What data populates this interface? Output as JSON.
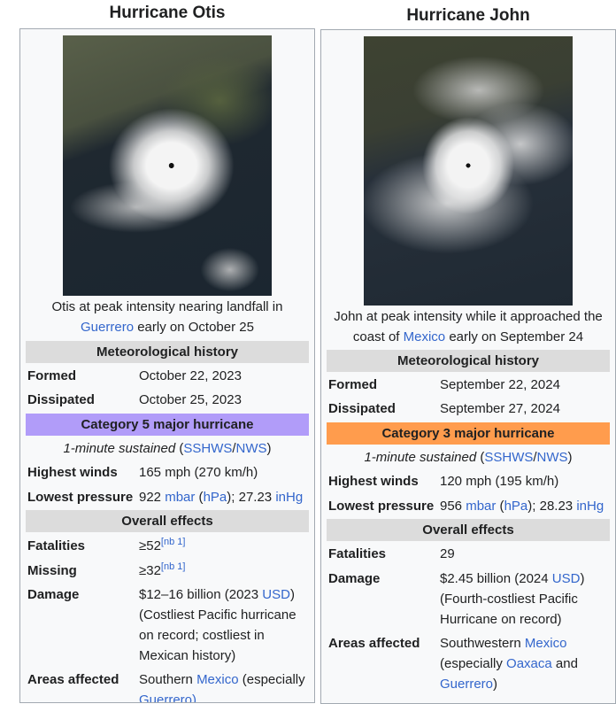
{
  "otis": {
    "title": "Hurricane Otis",
    "caption_pre": "Otis at peak intensity nearing landfall in",
    "caption_link": "Guerrero",
    "caption_post": "early on October 25",
    "met_history": "Meteorological history",
    "formed_label": "Formed",
    "formed_value": "October 22, 2023",
    "dissipated_label": "Dissipated",
    "dissipated_value": "October 25, 2023",
    "category": "Category 5 major hurricane",
    "category_color": "#b19cf9",
    "sustained_italic": "1-minute sustained",
    "sustained_link1": "SSHWS",
    "sustained_link2": "NWS",
    "winds_label": "Highest winds",
    "winds_value": "165 mph (270 km/h)",
    "pressure_label": "Lowest pressure",
    "pressure_value_pre": "922",
    "pressure_unit_mbar": "mbar",
    "pressure_unit_hpa": "hPa",
    "pressure_value_mid": "; 27.23",
    "pressure_unit_inhg": "inHg",
    "overall_effects": "Overall effects",
    "fatalities_label": "Fatalities",
    "fatalities_value": "≥52",
    "fatalities_note": "[nb 1]",
    "missing_label": "Missing",
    "missing_value": "≥32",
    "missing_note": "[nb 1]",
    "damage_label": "Damage",
    "damage_line1_pre": "$12–16 billion (2023",
    "damage_usd": "USD",
    "damage_line1_post": ")",
    "damage_line2": "(Costliest Pacific hurricane",
    "damage_line3": "on record; costliest in",
    "damage_line4": "Mexican history)",
    "areas_label": "Areas affected",
    "areas_pre": "Southern",
    "areas_link": "Mexico",
    "areas_post": "(especially",
    "areas_cut": "Guerrero)"
  },
  "john": {
    "title": "Hurricane John",
    "caption_line1": "John at peak intensity while it approached the",
    "caption_pre": "coast of",
    "caption_link": "Mexico",
    "caption_post": "early on September 24",
    "met_history": "Meteorological history",
    "formed_label": "Formed",
    "formed_value": "September 22, 2024",
    "dissipated_label": "Dissipated",
    "dissipated_value": "September 27, 2024",
    "category": "Category 3 major hurricane",
    "category_color": "#ff9c4d",
    "sustained_italic": "1-minute sustained",
    "sustained_link1": "SSHWS",
    "sustained_link2": "NWS",
    "winds_label": "Highest winds",
    "winds_value": "120 mph (195 km/h)",
    "pressure_label": "Lowest pressure",
    "pressure_value_pre": "956",
    "pressure_unit_mbar": "mbar",
    "pressure_unit_hpa": "hPa",
    "pressure_value_mid": "; 28.23",
    "pressure_unit_inhg": "inHg",
    "overall_effects": "Overall effects",
    "fatalities_label": "Fatalities",
    "fatalities_value": "29",
    "damage_label": "Damage",
    "damage_line1_pre": "$2.45 billion (2024",
    "damage_usd": "USD",
    "damage_line1_post": ")",
    "damage_line2": "(Fourth-costliest Pacific",
    "damage_line3": "Hurricane on record)",
    "areas_label": "Areas affected",
    "areas_line1_pre": "Southwestern",
    "areas_line1_link": "Mexico",
    "areas_line2_pre": "(especially",
    "areas_line2_link": "Oaxaca",
    "areas_line2_post": "and",
    "areas_line3_link": "Guerrero",
    "areas_line3_post": ")"
  }
}
